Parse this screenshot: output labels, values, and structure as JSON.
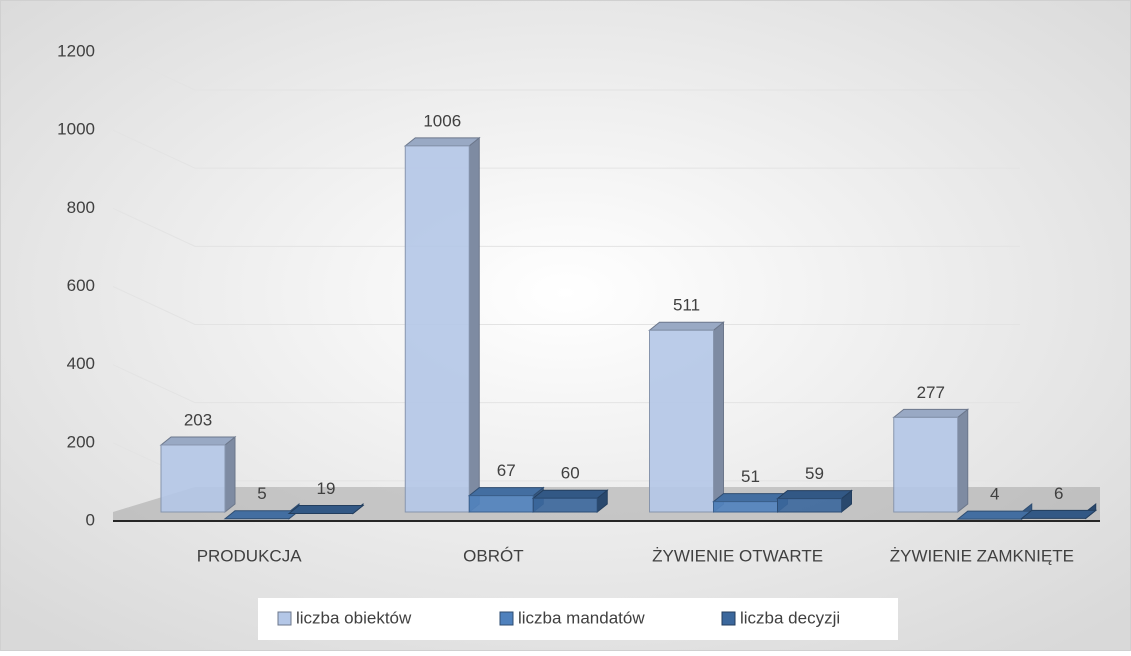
{
  "chart_data": {
    "type": "bar3d",
    "categories": [
      "PRODUKCJA",
      "OBRÓT",
      "ŻYWIENIE OTWARTE",
      "ŻYWIENIE ZAMKNIĘTE"
    ],
    "series": [
      {
        "name": "liczba obiektów",
        "color": "#b4c7e7",
        "values": [
          203,
          1006,
          511,
          277
        ]
      },
      {
        "name": "liczba mandatów",
        "color": "#4f81bd",
        "values": [
          5,
          67,
          51,
          4
        ]
      },
      {
        "name": "liczba decyzji",
        "color": "#3b679c",
        "values": [
          19,
          60,
          59,
          6
        ]
      }
    ],
    "ylim": [
      0,
      1200
    ],
    "yticks": [
      0,
      200,
      400,
      600,
      800,
      1000,
      1200
    ],
    "grid": true,
    "legend": "bottom"
  }
}
